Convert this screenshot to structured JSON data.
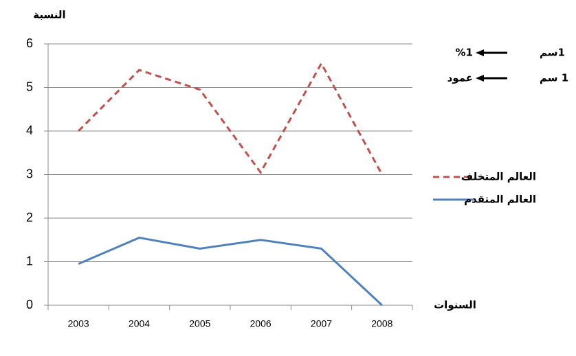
{
  "chart_data": {
    "type": "line",
    "y_label": "النسبة",
    "x_label": "السنوات",
    "categories": [
      "2003",
      "2004",
      "2005",
      "2006",
      "2007",
      "2008"
    ],
    "series": [
      {
        "name": "العالم المتخلف",
        "color": "#c0504d",
        "dashed": true,
        "values": [
          4,
          5.4,
          4.95,
          3.05,
          5.55,
          3.0
        ]
      },
      {
        "name": "العالم المتقدم",
        "color": "#4f81bd",
        "dashed": false,
        "values": [
          0.95,
          1.55,
          1.3,
          1.5,
          1.3,
          0
        ]
      }
    ],
    "ylim": [
      0,
      6
    ],
    "yticks": [
      0,
      1,
      2,
      3,
      4,
      5,
      6
    ],
    "grid": true,
    "annotations": [
      {
        "from": "1سم",
        "to": "%1"
      },
      {
        "from": "1 سم",
        "to": "عمود"
      }
    ]
  }
}
